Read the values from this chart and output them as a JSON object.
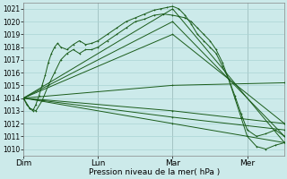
{
  "xlabel": "Pression niveau de la mer( hPa )",
  "bg_color": "#cceaea",
  "grid_color": "#aad4d4",
  "line_color": "#1a5c1a",
  "ylim": [
    1009.5,
    1021.5
  ],
  "yticks": [
    1010,
    1011,
    1012,
    1013,
    1014,
    1015,
    1016,
    1017,
    1018,
    1019,
    1020,
    1021
  ],
  "day_labels": [
    "Dim",
    "Lun",
    "Mar",
    "Mer"
  ],
  "day_positions": [
    0,
    48,
    96,
    144
  ],
  "xlim": [
    0,
    168
  ],
  "lines": [
    {
      "x": [
        0,
        2,
        4,
        6,
        8,
        10,
        12,
        14,
        16,
        18,
        20,
        22,
        24,
        28,
        32,
        36,
        40,
        44,
        48,
        54,
        60,
        66,
        72,
        78,
        84,
        88,
        92,
        96,
        100,
        104,
        108,
        112,
        116,
        120,
        124,
        128,
        132,
        136,
        140,
        144,
        150,
        156,
        162,
        168
      ],
      "y": [
        1014.0,
        1013.5,
        1013.2,
        1013.0,
        1013.5,
        1014.2,
        1015.0,
        1015.8,
        1016.8,
        1017.5,
        1018.0,
        1018.3,
        1018.0,
        1017.8,
        1018.2,
        1018.5,
        1018.2,
        1018.3,
        1018.5,
        1019.0,
        1019.5,
        1020.0,
        1020.3,
        1020.6,
        1020.9,
        1021.0,
        1021.1,
        1021.2,
        1021.0,
        1020.5,
        1019.8,
        1019.0,
        1018.5,
        1018.0,
        1017.5,
        1016.5,
        1015.5,
        1014.0,
        1012.5,
        1011.0,
        1010.2,
        1010.0,
        1010.3,
        1010.5
      ],
      "marker": true
    },
    {
      "x": [
        0,
        4,
        8,
        12,
        16,
        20,
        24,
        28,
        32,
        36,
        40,
        44,
        48,
        54,
        60,
        66,
        72,
        78,
        84,
        90,
        96,
        100,
        104,
        108,
        112,
        116,
        120,
        124,
        128,
        132,
        136,
        140,
        144,
        150,
        156,
        162,
        168
      ],
      "y": [
        1014.0,
        1013.2,
        1013.0,
        1013.8,
        1015.0,
        1016.0,
        1017.0,
        1017.5,
        1017.8,
        1017.5,
        1017.8,
        1017.8,
        1018.0,
        1018.5,
        1019.0,
        1019.5,
        1020.0,
        1020.2,
        1020.5,
        1020.6,
        1020.5,
        1020.4,
        1020.3,
        1020.0,
        1019.5,
        1019.0,
        1018.5,
        1017.8,
        1016.8,
        1015.5,
        1014.2,
        1012.8,
        1011.5,
        1011.0,
        1011.2,
        1011.5,
        1011.0
      ],
      "marker": true
    },
    {
      "x": [
        0,
        96,
        168
      ],
      "y": [
        1014.0,
        1021.0,
        1010.5
      ],
      "marker": true
    },
    {
      "x": [
        0,
        96,
        168
      ],
      "y": [
        1014.0,
        1020.0,
        1011.0
      ],
      "marker": true
    },
    {
      "x": [
        0,
        96,
        168
      ],
      "y": [
        1014.0,
        1019.0,
        1012.0
      ],
      "marker": true
    },
    {
      "x": [
        0,
        96,
        168
      ],
      "y": [
        1014.0,
        1015.0,
        1015.2
      ],
      "marker": true
    },
    {
      "x": [
        0,
        96,
        168
      ],
      "y": [
        1014.0,
        1013.0,
        1012.0
      ],
      "marker": true
    },
    {
      "x": [
        0,
        96,
        168
      ],
      "y": [
        1014.0,
        1012.5,
        1011.5
      ],
      "marker": true
    },
    {
      "x": [
        0,
        96,
        168
      ],
      "y": [
        1014.0,
        1012.0,
        1010.5
      ],
      "marker": true
    }
  ]
}
